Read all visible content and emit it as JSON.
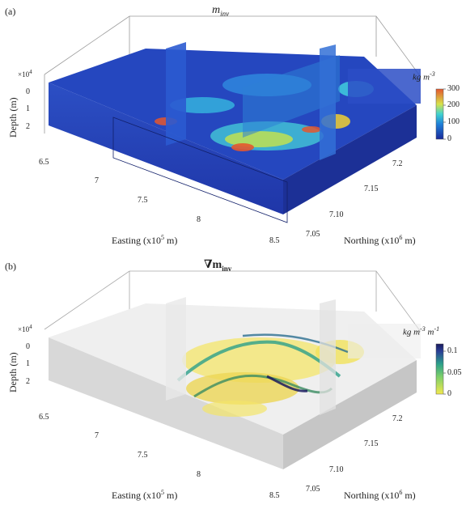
{
  "panels": [
    {
      "letter": "(a)",
      "title_main": "m",
      "title_sub": "inv",
      "depth_label": "Depth (m)",
      "depth_exp": "×10",
      "depth_exp_power": "4",
      "depth_ticks": [
        "0",
        "1",
        "2"
      ],
      "easting_label": "Easting (x10",
      "easting_power": "5",
      "easting_unit": " m)",
      "easting_ticks": [
        "6.5",
        "7",
        "7.5",
        "8",
        "8.5"
      ],
      "northing_label": "Northing (x10",
      "northing_power": "6",
      "northing_unit": " m)",
      "northing_ticks": [
        "7.05",
        "7.10",
        "7.15",
        "7.2"
      ],
      "cbar_unit": "kg m",
      "cbar_power": "-3",
      "cbar_ticks": [
        "300",
        "200",
        "100",
        "0"
      ]
    },
    {
      "letter": "(b)",
      "title_main": "∇m",
      "title_sub": "inv",
      "depth_label": "Depth (m)",
      "depth_exp": "×10",
      "depth_exp_power": "4",
      "depth_ticks": [
        "0",
        "1",
        "2"
      ],
      "easting_label": "Easting (x10",
      "easting_power": "5",
      "easting_unit": " m)",
      "easting_ticks": [
        "6.5",
        "7",
        "7.5",
        "8",
        "8.5"
      ],
      "northing_label": "Northing (x10",
      "northing_power": "6",
      "northing_unit": " m)",
      "northing_ticks": [
        "7.05",
        "7.10",
        "7.15",
        "7.2"
      ],
      "cbar_unit": "kg m",
      "cbar_power": "-3",
      "cbar_unit2": " m",
      "cbar_power2": "-1",
      "cbar_ticks": [
        "0.1",
        "0.05",
        "0"
      ]
    }
  ],
  "chart_data": [
    {
      "type": "heatmap",
      "title": "m_inv",
      "xlabel": "Easting (x10^5 m)",
      "ylabel": "Northing (x10^6 m)",
      "zlabel": "Depth (m)",
      "xlim": [
        6.5,
        8.5
      ],
      "ylim": [
        7.05,
        7.2
      ],
      "zlim": [
        0,
        2
      ],
      "colorbar": {
        "label": "kg m^-3",
        "range": [
          0,
          300
        ],
        "ticks": [
          0,
          100,
          200,
          300
        ],
        "colormap": "blue-cyan-yellow-red"
      }
    },
    {
      "type": "heatmap",
      "title": "∇m_inv",
      "xlabel": "Easting (x10^5 m)",
      "ylabel": "Northing (x10^6 m)",
      "zlabel": "Depth (m)",
      "xlim": [
        6.5,
        8.5
      ],
      "ylim": [
        7.05,
        7.2
      ],
      "zlim": [
        0,
        2
      ],
      "colorbar": {
        "label": "kg m^-3 m^-1",
        "range": [
          0,
          0.12
        ],
        "ticks": [
          0,
          0.05,
          0.1
        ],
        "colormap": "yellow-green-blue"
      }
    }
  ]
}
